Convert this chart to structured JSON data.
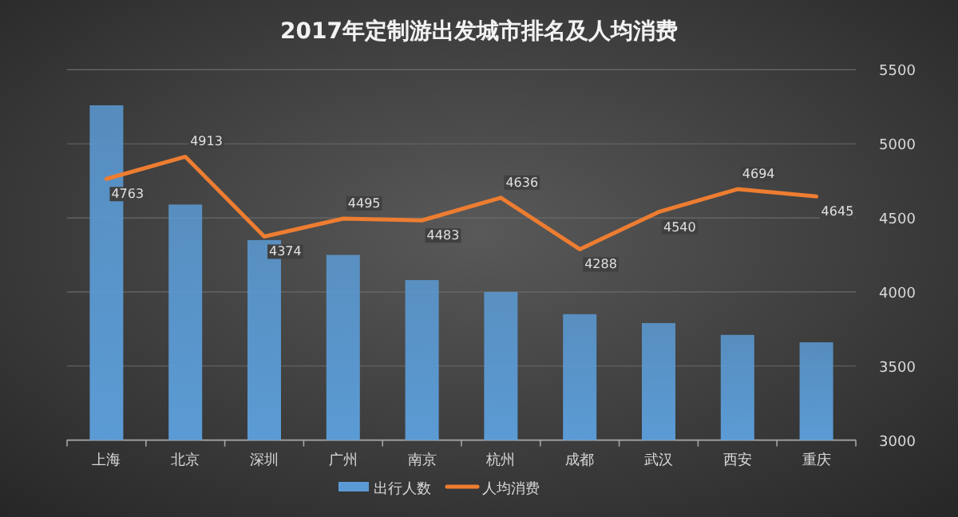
{
  "chart_data": {
    "type": "bar",
    "title": "2017年定制游出发城市排名及人均消费",
    "categories": [
      "上海",
      "北京",
      "深圳",
      "广州",
      "南京",
      "杭州",
      "成都",
      "武汉",
      "西安",
      "重庆"
    ],
    "series": [
      {
        "name": "出行人数",
        "axis": "y2",
        "color": "#5b9bd5",
        "values": [
          5260,
          4590,
          4350,
          4250,
          4080,
          4000,
          3850,
          3790,
          3710,
          3660
        ]
      },
      {
        "name": "人均消费",
        "type": "line",
        "axis": "y2",
        "color": "#ed7d31",
        "values": [
          4763,
          4913,
          4374,
          4495,
          4483,
          4636,
          4288,
          4540,
          4694,
          4645
        ],
        "value_labels": [
          "4763",
          "4913",
          "4374",
          "4495",
          "4483",
          "4636",
          "4288",
          "4540",
          "4694",
          "4645"
        ]
      }
    ],
    "y2lim": [
      3000,
      5500
    ],
    "y2ticks": [
      3000,
      3500,
      4000,
      4500,
      5000,
      5500
    ],
    "grid": "y",
    "legend": "bottom",
    "marker": "none",
    "line_style": "solid"
  }
}
